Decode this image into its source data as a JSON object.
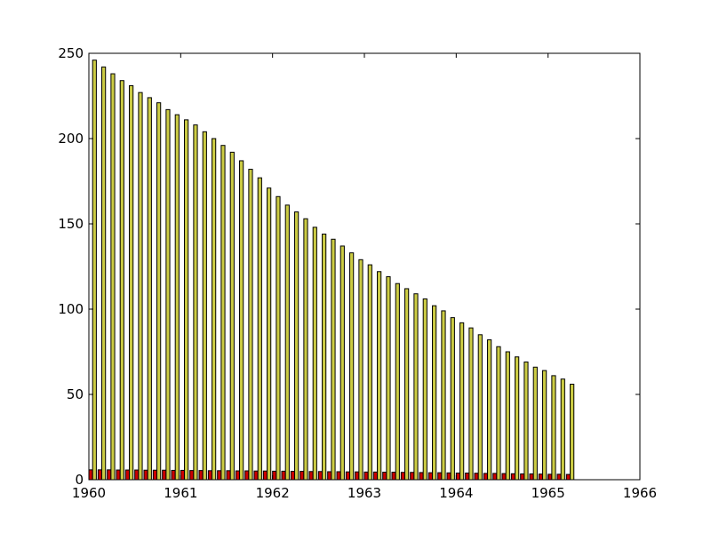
{
  "chart_data": {
    "type": "bar",
    "title": "",
    "xlabel": "",
    "ylabel": "",
    "xlim": [
      1960,
      1966
    ],
    "ylim": [
      0,
      250
    ],
    "grid": false,
    "legend": "none",
    "x_ticks": [
      "1960",
      "1961",
      "1962",
      "1963",
      "1964",
      "1965",
      "1966"
    ],
    "y_ticks": [
      "0",
      "50",
      "100",
      "150",
      "200",
      "250"
    ],
    "x": [
      1960.0,
      1960.1,
      1960.2,
      1960.3,
      1960.4,
      1960.5,
      1960.6,
      1960.7,
      1960.8,
      1960.9,
      1961.0,
      1961.1,
      1961.2,
      1961.3,
      1961.4,
      1961.5,
      1961.6,
      1961.7,
      1961.8,
      1961.9,
      1962.0,
      1962.1,
      1962.2,
      1962.3,
      1962.4,
      1962.5,
      1962.6,
      1962.7,
      1962.8,
      1962.9,
      1963.0,
      1963.1,
      1963.2,
      1963.3,
      1963.4,
      1963.5,
      1963.6,
      1963.7,
      1963.8,
      1963.9,
      1964.0,
      1964.1,
      1964.2,
      1964.3,
      1964.4,
      1964.5,
      1964.6,
      1964.7,
      1964.8,
      1964.9,
      1965.0,
      1965.1,
      1965.2
    ],
    "series": [
      {
        "color": "#cc0000",
        "values": [
          5.8,
          5.8,
          5.8,
          5.7,
          5.7,
          5.7,
          5.6,
          5.6,
          5.6,
          5.5,
          5.5,
          5.4,
          5.4,
          5.3,
          5.3,
          5.3,
          5.2,
          5.2,
          5.1,
          5.1,
          5.0,
          5.0,
          4.9,
          4.9,
          4.8,
          4.8,
          4.7,
          4.7,
          4.6,
          4.6,
          4.5,
          4.5,
          4.4,
          4.4,
          4.3,
          4.3,
          4.2,
          4.1,
          4.1,
          4.0,
          3.9,
          3.9,
          3.8,
          3.7,
          3.7,
          3.6,
          3.5,
          3.4,
          3.4,
          3.3,
          3.2,
          3.2,
          3.1
        ]
      },
      {
        "color": "#cccc44",
        "values": [
          246,
          242,
          238,
          234,
          231,
          227,
          224,
          221,
          217,
          214,
          211,
          208,
          204,
          200,
          196,
          192,
          187,
          182,
          177,
          171,
          166,
          161,
          157,
          153,
          148,
          144,
          141,
          137,
          133,
          129,
          126,
          122,
          119,
          115,
          112,
          109,
          106,
          102,
          99,
          95,
          92,
          89,
          85,
          82,
          78,
          75,
          72,
          69,
          66,
          64,
          61,
          59,
          56
        ]
      }
    ]
  }
}
